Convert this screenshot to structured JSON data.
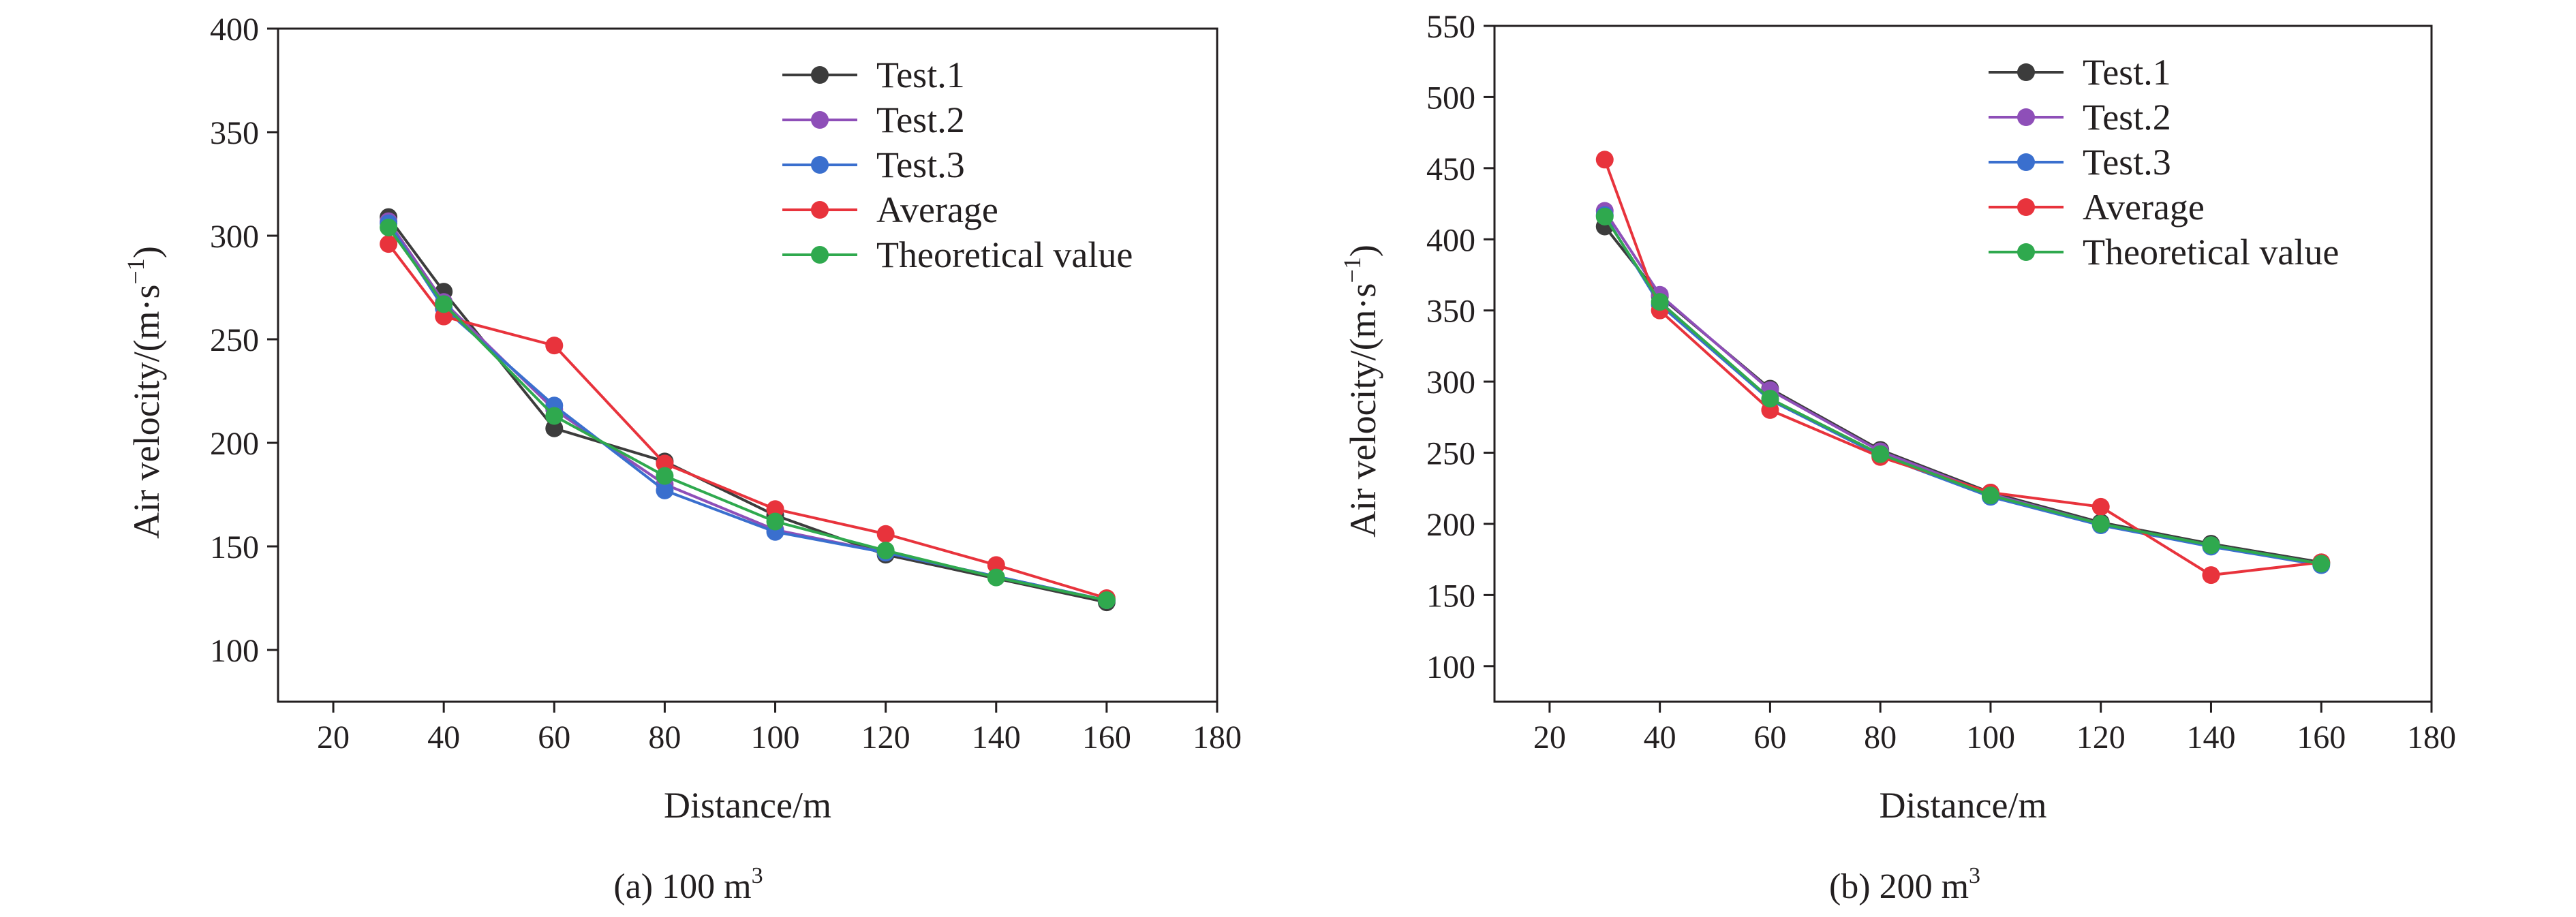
{
  "colors": {
    "Test.1": "#3c3c3c",
    "Test.2": "#8e4fb8",
    "Test.3": "#3a6fce",
    "Average": "#e8333c",
    "Theoretical value": "#2fa94e"
  },
  "chart_data": [
    {
      "type": "line",
      "caption": "(a) 100 m",
      "caption_sup": "3",
      "xlabel": "Distance/m",
      "ylabel_main": "Air velocity/(m·s",
      "ylabel_sup": "−1",
      "ylabel_end": ")",
      "xlim": [
        10,
        180
      ],
      "ylim": [
        75,
        400
      ],
      "xticks": [
        20,
        40,
        60,
        80,
        100,
        120,
        140,
        160,
        180
      ],
      "yticks": [
        100,
        150,
        200,
        250,
        300,
        350,
        400
      ],
      "legend_position": "top-right",
      "series": [
        {
          "name": "Test.1",
          "x": [
            30,
            40,
            60,
            80,
            100,
            120,
            160
          ],
          "y": [
            309,
            273,
            207,
            191,
            165,
            146,
            123
          ]
        },
        {
          "name": "Test.2",
          "x": [
            30,
            40,
            60,
            80,
            100,
            120,
            160
          ],
          "y": [
            307,
            268,
            216,
            180,
            158,
            147,
            124
          ]
        },
        {
          "name": "Test.3",
          "x": [
            30,
            40,
            60,
            80,
            100,
            120,
            160
          ],
          "y": [
            306,
            265,
            218,
            177,
            157,
            147,
            124
          ]
        },
        {
          "name": "Average",
          "x": [
            30,
            40,
            60,
            80,
            100,
            120,
            140,
            160
          ],
          "y": [
            296,
            261,
            247,
            190,
            168,
            156,
            141,
            125
          ]
        },
        {
          "name": "Theoretical value",
          "x": [
            30,
            40,
            60,
            80,
            100,
            120,
            140,
            160
          ],
          "y": [
            304,
            267,
            213,
            184,
            162,
            148,
            135,
            124
          ]
        }
      ]
    },
    {
      "type": "line",
      "caption": "(b) 200 m",
      "caption_sup": "3",
      "xlabel": "Distance/m",
      "ylabel_main": "Air velocity/(m·s",
      "ylabel_sup": "−1",
      "ylabel_end": ")",
      "xlim": [
        10,
        180
      ],
      "ylim": [
        75,
        550
      ],
      "xticks": [
        20,
        40,
        60,
        80,
        100,
        120,
        140,
        160,
        180
      ],
      "yticks": [
        100,
        150,
        200,
        250,
        300,
        350,
        400,
        450,
        500,
        550
      ],
      "legend_position": "top-right",
      "series": [
        {
          "name": "Test.1",
          "x": [
            30,
            40,
            60,
            80,
            100,
            120,
            140,
            160
          ],
          "y": [
            409,
            360,
            295,
            252,
            222,
            201,
            186,
            173
          ]
        },
        {
          "name": "Test.2",
          "x": [
            30,
            40,
            60,
            80,
            100,
            120,
            140,
            160
          ],
          "y": [
            420,
            361,
            294,
            251,
            221,
            200,
            185,
            172
          ]
        },
        {
          "name": "Test.3",
          "x": [
            30,
            40,
            60,
            80,
            100,
            120,
            140,
            160
          ],
          "y": [
            417,
            354,
            287,
            248,
            219,
            199,
            184,
            171
          ]
        },
        {
          "name": "Average",
          "x": [
            30,
            40,
            60,
            80,
            100,
            120,
            140,
            160
          ],
          "y": [
            456,
            350,
            280,
            247,
            222,
            212,
            164,
            173
          ]
        },
        {
          "name": "Theoretical value",
          "x": [
            30,
            40,
            60,
            80,
            100,
            120,
            140,
            160
          ],
          "y": [
            416,
            356,
            288,
            249,
            220,
            200,
            185,
            172
          ]
        }
      ]
    }
  ]
}
